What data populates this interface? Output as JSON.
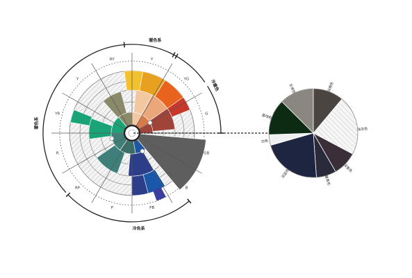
{
  "wheel": {
    "arc_labels": [
      "暖色系",
      "冷暖色",
      "冷色系",
      "暖色系"
    ],
    "sector_labels": [
      "RY",
      "Y",
      "YG",
      "G",
      "GB",
      "B",
      "PB",
      "P",
      "RP",
      "R",
      "YR",
      "Y"
    ],
    "colors": {
      "yellow": "#f2c12e",
      "amber": "#e8a020",
      "orange": "#e8641e",
      "red": "#c8382a",
      "brown": "#a0443a",
      "peach": "#f3c8a0",
      "olive": "#8a8a6a",
      "green": "#1aa376",
      "teal": "#3f7f7a",
      "blue": "#1a57a8",
      "indigo": "#2c3e8a",
      "violet": "#3d3fa0",
      "gray_wedge": "#5e5e5e",
      "hatch": "#cfcfcf"
    }
  },
  "pie": {
    "labels": [
      "灰褐色",
      "深褐色",
      "浅灰色",
      "深紫色",
      "藏青色",
      "深蓝色",
      "白色",
      "墨绿色"
    ],
    "colors": [
      "#8a8780",
      "#4a4541",
      "#ececec",
      "#3a2f38",
      "#2a2b3a",
      "#1e2540",
      "#f0f0f0",
      "#0d2a12"
    ]
  }
}
